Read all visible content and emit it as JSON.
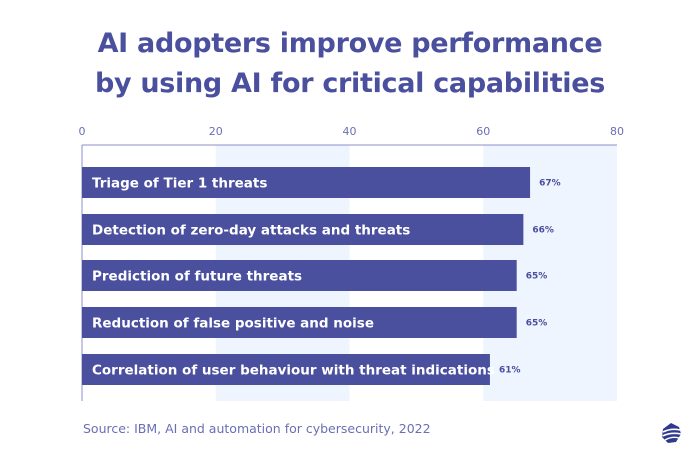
{
  "title": {
    "line1": "AI adopters improve performance",
    "line2": "by using AI for critical capabilities"
  },
  "source": "Source:  IBM, AI and automation for cybersecurity, 2022",
  "colors": {
    "bar": "#4a4f9e",
    "band": "#eef5fe",
    "text": "#4a4f9e",
    "tick": "#6a6fb3"
  },
  "logo": {
    "icon": "brand-logo-icon"
  },
  "chart_data": {
    "type": "bar",
    "orientation": "horizontal",
    "title": "AI adopters improve performance by using AI for critical capabilities",
    "xlabel": "",
    "ylabel": "",
    "xlim": [
      0,
      80
    ],
    "xticks": [
      "0",
      "20",
      "40",
      "60",
      "80"
    ],
    "xtick_values": [
      0,
      20,
      40,
      60,
      80
    ],
    "grid": "alternating vertical bands",
    "legend": "none",
    "categories": [
      "Triage of Tier 1 threats",
      "Detection of zero-day attacks and threats",
      "Prediction of future threats",
      "Reduction of false positive and noise",
      "Correlation of user behaviour with threat indications"
    ],
    "values": [
      67,
      66,
      65,
      65,
      61
    ],
    "value_labels": [
      "67%",
      "66%",
      "65%",
      "65%",
      "61%"
    ],
    "unit": "%"
  }
}
